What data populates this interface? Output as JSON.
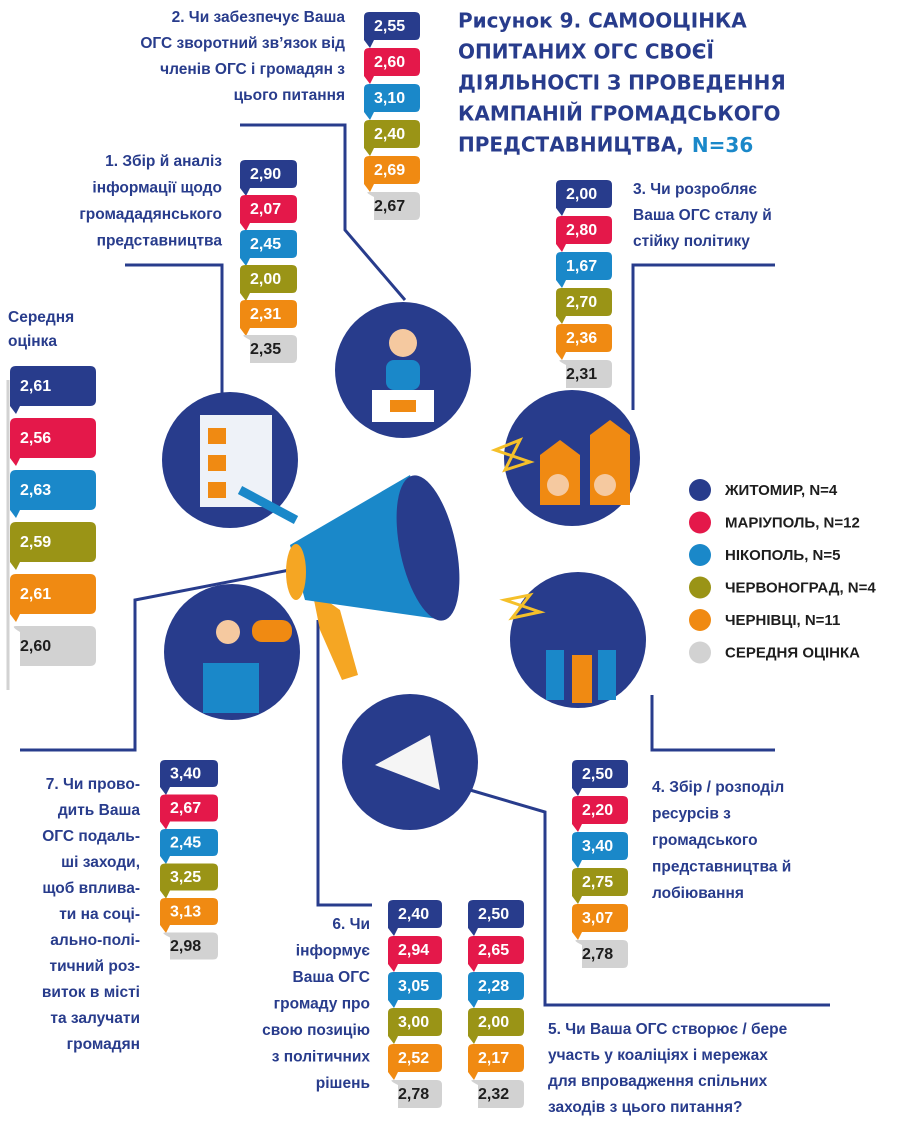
{
  "title": {
    "lines": [
      "Рисунок 9. САМООЦІНКА",
      "ОПИТАНИХ ОГС СВОЄЇ",
      "ДІЯЛЬНОСТІ З ПРОВЕДЕННЯ",
      "КАМПАНІЙ ГРОМАДСЬКОГО",
      "ПРЕДСТАВНИЦТВА,"
    ],
    "n": "N=36"
  },
  "legend": [
    {
      "label": "ЖИТОМИР, N=4",
      "color": "#283c8c"
    },
    {
      "label": "МАРІУПОЛЬ, N=12",
      "color": "#e4184a"
    },
    {
      "label": "НІКОПОЛЬ, N=5",
      "color": "#1a88c9"
    },
    {
      "label": "ЧЕРВОНОГРАД, N=4",
      "color": "#9a9416"
    },
    {
      "label": "ЧЕРНІВЦІ, N=11",
      "color": "#f08a12"
    },
    {
      "label": "СЕРЕДНЯ ОЦІНКА",
      "color": "#d2d2d2"
    }
  ],
  "average": {
    "lines": [
      "Середня",
      "оцінка"
    ],
    "values": [
      "2,61",
      "2,56",
      "2,63",
      "2,59",
      "2,61",
      "2,60"
    ]
  },
  "questions": [
    {
      "lines": [
        "1. Збір й аналіз",
        "інформації щодо",
        "громададянського",
        "представництва"
      ],
      "values": [
        "2,90",
        "2,07",
        "2,45",
        "2,00",
        "2,31",
        "2,35"
      ]
    },
    {
      "lines": [
        "2. Чи забезпечує Ваша",
        "ОГС зворотний зв’язок від",
        "членів ОГС і громадян з",
        "цього питання"
      ],
      "values": [
        "2,55",
        "2,60",
        "3,10",
        "2,40",
        "2,69",
        "2,67"
      ]
    },
    {
      "lines": [
        "3. Чи розробляє",
        "Ваша ОГС сталу й",
        "стійку політику"
      ],
      "values": [
        "2,00",
        "2,80",
        "1,67",
        "2,70",
        "2,36",
        "2,31"
      ]
    },
    {
      "lines": [
        "4. Збір / розподіл",
        "ресурсів з",
        "громадського",
        "представництва й",
        "лобіювання"
      ],
      "values": [
        "2,50",
        "2,20",
        "3,40",
        "2,75",
        "3,07",
        "2,78"
      ]
    },
    {
      "lines": [
        "5. Чи Ваша ОГС створює / бере",
        "участь у коаліціях і мережах",
        "для впровадження спільних",
        "заходів з цього питання?"
      ],
      "values": [
        "2,50",
        "2,65",
        "2,28",
        "2,00",
        "2,17",
        "2,32"
      ]
    },
    {
      "lines": [
        "6. Чи",
        "інформує",
        "Ваша ОГС",
        "громаду про",
        "свою позицію",
        "з політичних",
        "рішень"
      ],
      "values": [
        "2,40",
        "2,94",
        "3,05",
        "3,00",
        "2,52",
        "2,78"
      ]
    },
    {
      "lines": [
        "7. Чи прово-",
        "дить Ваша",
        "ОГС подаль-",
        "ші заходи,",
        "щоб вплива-",
        "ти на соці-",
        "ально-полі-",
        "тичний роз-",
        "виток в місті",
        "та залучати",
        "громадян"
      ],
      "values": [
        "3,40",
        "2,67",
        "2,45",
        "3,25",
        "3,13",
        "2,98"
      ]
    }
  ]
}
